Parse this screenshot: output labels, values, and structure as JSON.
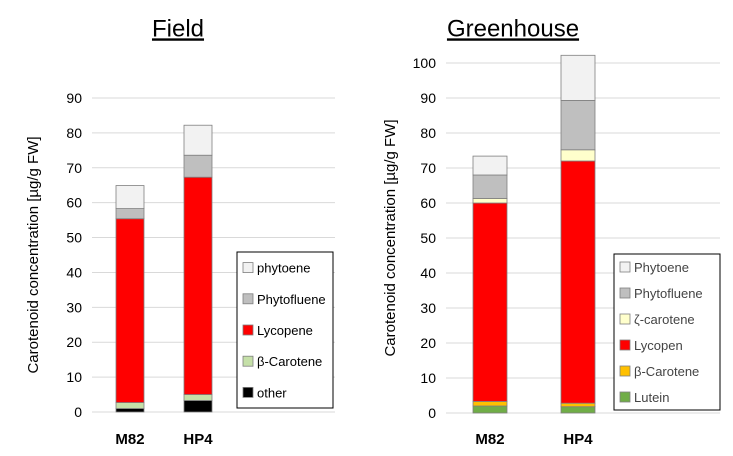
{
  "chart_data": [
    {
      "type": "bar",
      "stacked": true,
      "title": "Field",
      "xlabel": "",
      "ylabel": "Carotenoid concentration [µg/g FW]",
      "ylim": [
        0,
        90
      ],
      "yticks": [
        0,
        10,
        20,
        30,
        40,
        50,
        60,
        70,
        80,
        90
      ],
      "grid": true,
      "legend_position": "right",
      "categories": [
        "M82",
        "HP4"
      ],
      "series": [
        {
          "name": "other",
          "color": "#000000",
          "values": [
            1.0,
            3.3
          ]
        },
        {
          "name": "β-Carotene",
          "color": "#c5e0a8",
          "values": [
            1.7,
            1.7
          ]
        },
        {
          "name": "Lycopene",
          "color": "#ff0000",
          "values": [
            52.7,
            62.3
          ]
        },
        {
          "name": "Phytofluene",
          "color": "#bfbfbf",
          "values": [
            2.9,
            6.3
          ]
        },
        {
          "name": "phytoene",
          "color": "#f2f2f2",
          "values": [
            6.6,
            8.6
          ]
        }
      ]
    },
    {
      "type": "bar",
      "stacked": true,
      "title": "Greenhouse",
      "xlabel": "",
      "ylabel": "Carotenoid concentration [µg/g FW]",
      "ylim": [
        0,
        100
      ],
      "yticks": [
        0,
        10,
        20,
        30,
        40,
        50,
        60,
        70,
        80,
        90,
        100
      ],
      "grid": true,
      "legend_position": "right",
      "categories": [
        "M82",
        "HP4"
      ],
      "series": [
        {
          "name": "Lutein",
          "color": "#70ad47",
          "values": [
            2.0,
            1.8
          ]
        },
        {
          "name": "β-Carotene",
          "color": "#ffc000",
          "values": [
            1.3,
            1.0
          ]
        },
        {
          "name": "Lycopen",
          "color": "#ff0000",
          "values": [
            56.7,
            69.2
          ]
        },
        {
          "name": "ζ-carotene",
          "color": "#ffffcc",
          "values": [
            1.3,
            3.2
          ]
        },
        {
          "name": "Phytofluene",
          "color": "#bfbfbf",
          "values": [
            6.7,
            14.1
          ]
        },
        {
          "name": "Phytoene",
          "color": "#f2f2f2",
          "values": [
            5.4,
            12.9
          ]
        }
      ]
    }
  ]
}
